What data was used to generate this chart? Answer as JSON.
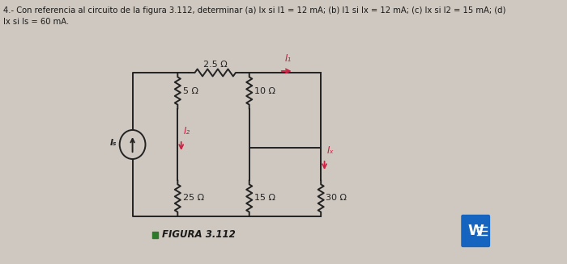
{
  "title_line1": "4.- Con referencia al circuito de la figura 3.112, determinar (a) Ix si I1 = 12 mA; (b) I1 si Ix = 12 mA; (c) Ix si I2 = 15 mA; (d)",
  "title_line2": "Ix si Is = 60 mA.",
  "figura_label": "FIGURA 3.112",
  "bg_color": "#cfc8c0",
  "text_color": "#1a1a1a",
  "circuit_color": "#222222",
  "label_25ohm": "2.5 Ω",
  "label_5ohm": "5 Ω",
  "label_10ohm": "10 Ω",
  "label_25ohm2": "25 Ω",
  "label_15ohm": "15 Ω",
  "label_30ohm": "30 Ω",
  "label_I1": "I₁",
  "label_I2": "I₂",
  "label_Ix": "Iₓ",
  "label_Is": "Iₛ",
  "arrow_color": "#cc2244",
  "figura_square_color": "#2d7a2d",
  "word_bg_color": "#1565c0",
  "word_text_color": "#ffffff"
}
